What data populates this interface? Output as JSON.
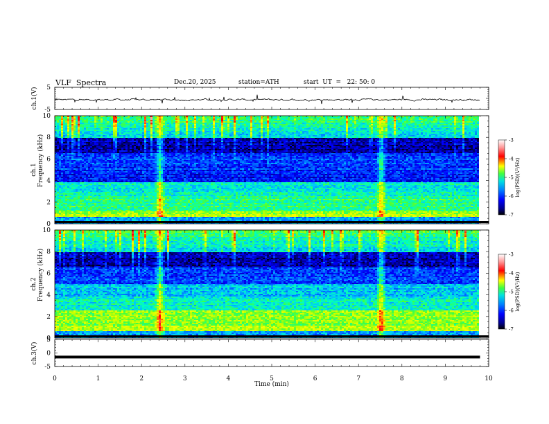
{
  "header": {
    "title": "VLF  Spectra",
    "date": "Dec.20, 2025",
    "station": "station=ATH",
    "start_ut": "start  UT  =   22: 50: 0"
  },
  "chart_data": [
    {
      "type": "line",
      "ylabel": "ch.1(V)",
      "ylim": [
        -5,
        5
      ],
      "yticks": [
        "5",
        "-5"
      ],
      "x_range": [
        0,
        9.8
      ],
      "mean_value": -0.6,
      "description_of_signal": "noisy baseline near -0.5 V with occasional short spikes"
    },
    {
      "type": "heatmap",
      "ylabel_top": "ch.1",
      "ylabel": "Frequency  (kHz)",
      "ylim": [
        0,
        10
      ],
      "yticks": [
        "0",
        "2",
        "4",
        "6",
        "8",
        "10"
      ],
      "colorbar": {
        "label": "log(PSD)(V²/Hz)",
        "ticks": [
          "-3",
          "-4",
          "-5",
          "-6",
          "-7"
        ],
        "range": [
          -7,
          -3
        ]
      },
      "bursts_at_min": [
        2.4,
        7.5
      ]
    },
    {
      "type": "heatmap",
      "ylabel_top": "ch.2",
      "ylabel": "Frequency  (kHz)",
      "ylim": [
        0,
        10
      ],
      "yticks": [
        "0",
        "2",
        "4",
        "6",
        "8",
        "10"
      ],
      "colorbar": {
        "label": "log(PSD)(V²/Hz)",
        "ticks": [
          "-3",
          "-4",
          "-5",
          "-6",
          "-7"
        ],
        "range": [
          -7,
          -3
        ]
      },
      "bursts_at_min": [
        2.4,
        7.5
      ]
    },
    {
      "type": "line",
      "ylabel": "ch.3(V)",
      "ylim": [
        -5,
        5
      ],
      "yticks": [
        "5",
        "0",
        "-5"
      ],
      "x_range": [
        0,
        9.8
      ],
      "mean_value": -1.5
    }
  ],
  "xaxis": {
    "label": "Time  (min)",
    "xlim": [
      0,
      10
    ],
    "ticks": [
      "0",
      "1",
      "2",
      "3",
      "4",
      "5",
      "6",
      "7",
      "8",
      "9",
      "10"
    ]
  },
  "colors": {
    "colormap": [
      "#000000",
      "#00008b",
      "#0000ff",
      "#0060ff",
      "#00c0ff",
      "#00ffc0",
      "#40ff40",
      "#c0ff00",
      "#ffff00",
      "#ff8000",
      "#ff0000",
      "#ffb0b0",
      "#ffffff"
    ]
  }
}
